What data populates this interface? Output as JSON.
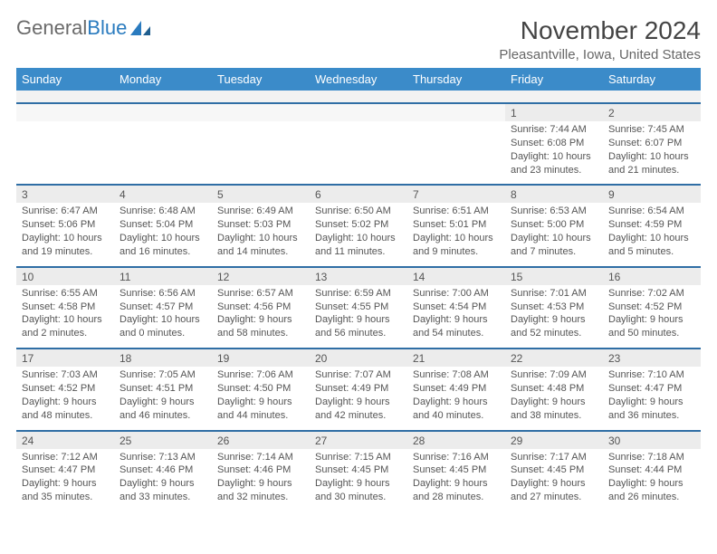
{
  "logo": {
    "text1": "General",
    "text2": "Blue"
  },
  "title": "November 2024",
  "location": "Pleasantville, Iowa, United States",
  "colors": {
    "header_bg": "#3b8bc9",
    "header_text": "#ffffff",
    "numrow_bg": "#ececec",
    "numrow_border": "#2f6ea5",
    "spacer_bg": "#f2f2f2",
    "body_text": "#555555",
    "title_text": "#444444",
    "location_text": "#666666",
    "logo_gray": "#6a6a6a",
    "logo_blue": "#2a7bbf"
  },
  "day_names": [
    "Sunday",
    "Monday",
    "Tuesday",
    "Wednesday",
    "Thursday",
    "Friday",
    "Saturday"
  ],
  "weeks": [
    [
      null,
      null,
      null,
      null,
      null,
      {
        "n": "1",
        "sr": "7:44 AM",
        "ss": "6:08 PM",
        "dl": "10 hours and 23 minutes."
      },
      {
        "n": "2",
        "sr": "7:45 AM",
        "ss": "6:07 PM",
        "dl": "10 hours and 21 minutes."
      }
    ],
    [
      {
        "n": "3",
        "sr": "6:47 AM",
        "ss": "5:06 PM",
        "dl": "10 hours and 19 minutes."
      },
      {
        "n": "4",
        "sr": "6:48 AM",
        "ss": "5:04 PM",
        "dl": "10 hours and 16 minutes."
      },
      {
        "n": "5",
        "sr": "6:49 AM",
        "ss": "5:03 PM",
        "dl": "10 hours and 14 minutes."
      },
      {
        "n": "6",
        "sr": "6:50 AM",
        "ss": "5:02 PM",
        "dl": "10 hours and 11 minutes."
      },
      {
        "n": "7",
        "sr": "6:51 AM",
        "ss": "5:01 PM",
        "dl": "10 hours and 9 minutes."
      },
      {
        "n": "8",
        "sr": "6:53 AM",
        "ss": "5:00 PM",
        "dl": "10 hours and 7 minutes."
      },
      {
        "n": "9",
        "sr": "6:54 AM",
        "ss": "4:59 PM",
        "dl": "10 hours and 5 minutes."
      }
    ],
    [
      {
        "n": "10",
        "sr": "6:55 AM",
        "ss": "4:58 PM",
        "dl": "10 hours and 2 minutes."
      },
      {
        "n": "11",
        "sr": "6:56 AM",
        "ss": "4:57 PM",
        "dl": "10 hours and 0 minutes."
      },
      {
        "n": "12",
        "sr": "6:57 AM",
        "ss": "4:56 PM",
        "dl": "9 hours and 58 minutes."
      },
      {
        "n": "13",
        "sr": "6:59 AM",
        "ss": "4:55 PM",
        "dl": "9 hours and 56 minutes."
      },
      {
        "n": "14",
        "sr": "7:00 AM",
        "ss": "4:54 PM",
        "dl": "9 hours and 54 minutes."
      },
      {
        "n": "15",
        "sr": "7:01 AM",
        "ss": "4:53 PM",
        "dl": "9 hours and 52 minutes."
      },
      {
        "n": "16",
        "sr": "7:02 AM",
        "ss": "4:52 PM",
        "dl": "9 hours and 50 minutes."
      }
    ],
    [
      {
        "n": "17",
        "sr": "7:03 AM",
        "ss": "4:52 PM",
        "dl": "9 hours and 48 minutes."
      },
      {
        "n": "18",
        "sr": "7:05 AM",
        "ss": "4:51 PM",
        "dl": "9 hours and 46 minutes."
      },
      {
        "n": "19",
        "sr": "7:06 AM",
        "ss": "4:50 PM",
        "dl": "9 hours and 44 minutes."
      },
      {
        "n": "20",
        "sr": "7:07 AM",
        "ss": "4:49 PM",
        "dl": "9 hours and 42 minutes."
      },
      {
        "n": "21",
        "sr": "7:08 AM",
        "ss": "4:49 PM",
        "dl": "9 hours and 40 minutes."
      },
      {
        "n": "22",
        "sr": "7:09 AM",
        "ss": "4:48 PM",
        "dl": "9 hours and 38 minutes."
      },
      {
        "n": "23",
        "sr": "7:10 AM",
        "ss": "4:47 PM",
        "dl": "9 hours and 36 minutes."
      }
    ],
    [
      {
        "n": "24",
        "sr": "7:12 AM",
        "ss": "4:47 PM",
        "dl": "9 hours and 35 minutes."
      },
      {
        "n": "25",
        "sr": "7:13 AM",
        "ss": "4:46 PM",
        "dl": "9 hours and 33 minutes."
      },
      {
        "n": "26",
        "sr": "7:14 AM",
        "ss": "4:46 PM",
        "dl": "9 hours and 32 minutes."
      },
      {
        "n": "27",
        "sr": "7:15 AM",
        "ss": "4:45 PM",
        "dl": "9 hours and 30 minutes."
      },
      {
        "n": "28",
        "sr": "7:16 AM",
        "ss": "4:45 PM",
        "dl": "9 hours and 28 minutes."
      },
      {
        "n": "29",
        "sr": "7:17 AM",
        "ss": "4:45 PM",
        "dl": "9 hours and 27 minutes."
      },
      {
        "n": "30",
        "sr": "7:18 AM",
        "ss": "4:44 PM",
        "dl": "9 hours and 26 minutes."
      }
    ]
  ],
  "labels": {
    "sunrise": "Sunrise: ",
    "sunset": "Sunset: ",
    "daylight": "Daylight: "
  }
}
